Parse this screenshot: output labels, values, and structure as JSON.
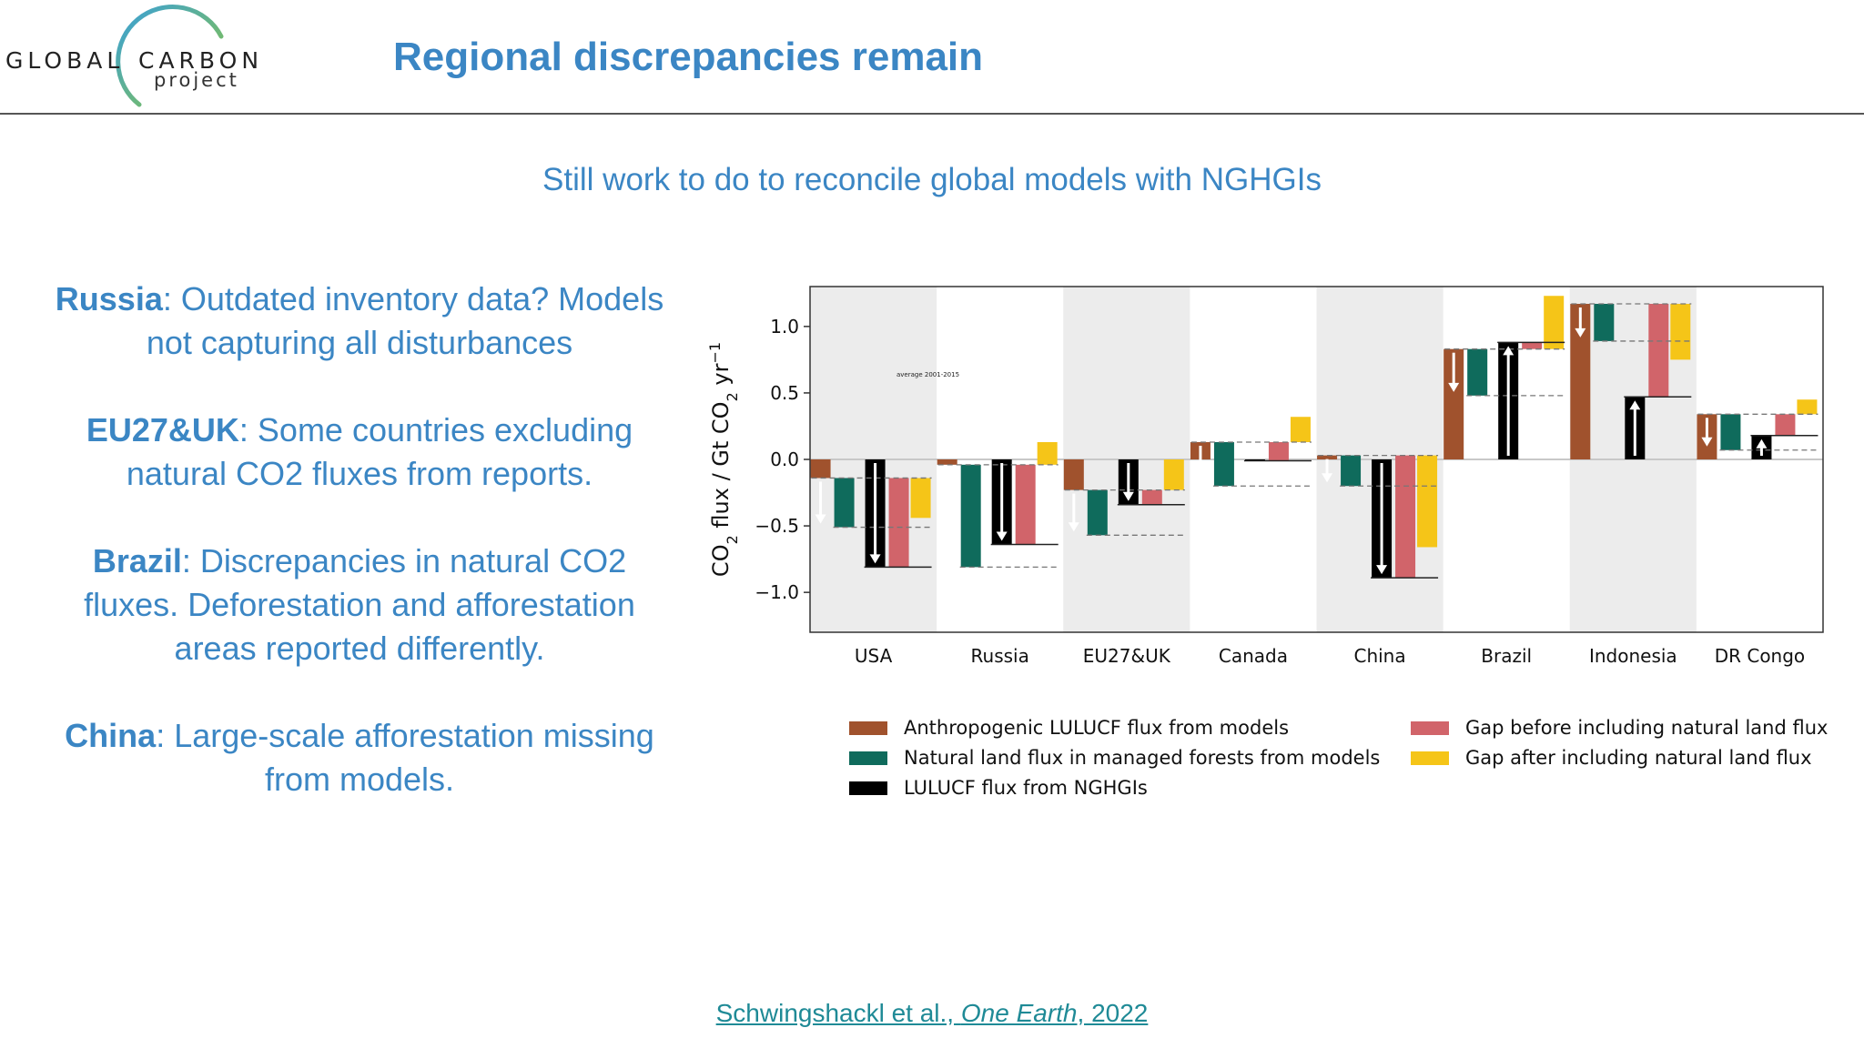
{
  "header": {
    "logo_word_1": "GLOBAL",
    "logo_word_2": "CARBON",
    "logo_word_3": "project",
    "title": "Regional discrepancies remain"
  },
  "subtitle": "Still work to do to reconcile global models with NGHGIs",
  "notes": [
    {
      "region": "Russia",
      "text": ": Outdated inventory data? Models not capturing all disturbances"
    },
    {
      "region": "EU27&UK",
      "text": ": Some countries excluding natural CO2 fluxes from reports."
    },
    {
      "region": "Brazil",
      "text": ": Discrepancies in natural CO2 fluxes. Deforestation and afforestation areas reported differently."
    },
    {
      "region": "China",
      "text": ": Large-scale afforestation missing from models."
    }
  ],
  "citation": {
    "authors": "Schwingshackl et al., ",
    "journal": "One Earth",
    "year": ", 2022"
  },
  "colors": {
    "anthropogenic": "#a0522d",
    "natural": "#0f6b5c",
    "nghgi": "#000000",
    "gap_before": "#d1646a",
    "gap_after": "#f5c518",
    "shade": "#ececec",
    "title_blue": "#3b86c4"
  },
  "chart_data": {
    "type": "bar",
    "ylabel_main": "CO",
    "ylabel_mid": " flux / Gt CO",
    "ylabel_end": " yr",
    "ylabel_sub": "2",
    "ylabel_sup": "−1",
    "ylim": [
      -1.3,
      1.3
    ],
    "yticks": [
      1.0,
      0.5,
      0.0,
      -0.5,
      -1.0
    ],
    "ytick_labels": [
      "1.0",
      "0.5",
      "0.0",
      "−0.5",
      "−1.0"
    ],
    "annotation": "average 2001-2015",
    "categories": [
      "USA",
      "Russia",
      "EU27&UK",
      "Canada",
      "China",
      "Brazil",
      "Indonesia",
      "DR Congo"
    ],
    "shaded_categories": [
      "USA",
      "EU27&UK",
      "China",
      "Indonesia"
    ],
    "series": [
      {
        "name": "Anthropogenic LULUCF flux from models",
        "values": [
          -0.14,
          -0.04,
          -0.23,
          0.13,
          0.03,
          0.83,
          1.17,
          0.34
        ]
      },
      {
        "name": "Natural land flux in managed forests from models",
        "values": [
          -0.37,
          -0.77,
          -0.34,
          -0.33,
          -0.23,
          -0.35,
          -0.28,
          -0.27
        ]
      },
      {
        "name": "LULUCF flux from NGHGIs",
        "values": [
          -0.81,
          -0.64,
          -0.34,
          -0.01,
          -0.89,
          0.88,
          0.47,
          0.18
        ]
      },
      {
        "name": "Gap before including natural land flux",
        "values": [
          0.67,
          0.6,
          0.11,
          0.14,
          0.92,
          -0.05,
          0.7,
          0.16
        ]
      },
      {
        "name": "Gap after including natural land flux",
        "values": [
          0.3,
          -0.17,
          -0.23,
          -0.19,
          0.69,
          -0.4,
          0.42,
          -0.11
        ]
      }
    ]
  }
}
